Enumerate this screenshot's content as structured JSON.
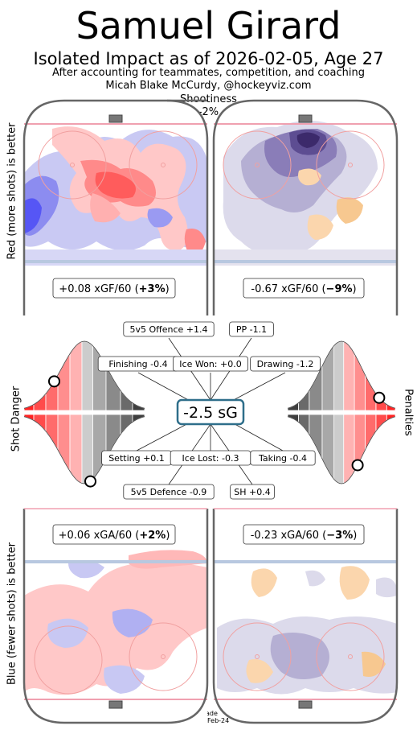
{
  "header": {
    "title": "Samuel Girard",
    "subtitle": "Isolated Impact as of 2026-02-05, Age 27",
    "line1": "After accounting for teammates, competition, and coaching",
    "line2": "Micah Blake McCurdy, @hockeyviz.com",
    "shootiness_label": "Shootiness",
    "shootiness_value": "-2%"
  },
  "axis_labels": {
    "top": "Red (more shots) is better",
    "bottom": "Blue (fewer shots) is better",
    "left": "Shot Danger",
    "right": "Penalties"
  },
  "footer": {
    "made_label": "Made",
    "made_date": "2026-Feb-24"
  },
  "center": {
    "total": "-2.5 sG"
  },
  "chart_data": {
    "type": "heatmap",
    "panels": [
      {
        "name": "offence-shot-danger",
        "xgf60": "+0.08 xGF/60 (",
        "pct": "+3%",
        "close": ")"
      },
      {
        "name": "offence-shootiness",
        "xgf60": "-0.67 xGF/60 (",
        "pct": "−9%",
        "close": ")"
      },
      {
        "name": "defence-shot-danger",
        "xga60": "+0.06 xGA/60 (",
        "pct": "+2%",
        "close": ")"
      },
      {
        "name": "defence-shootiness",
        "xga60": "-0.23 xGA/60 (",
        "pct": "−3%",
        "close": ")"
      }
    ],
    "components": [
      {
        "label": "5v5 Offence +1.4",
        "value": 1.4
      },
      {
        "label": "PP -1.1",
        "value": -1.1
      },
      {
        "label": "Finishing -0.4",
        "value": -0.4
      },
      {
        "label": "Ice Won: +0.0",
        "value": 0.0
      },
      {
        "label": "Drawing -1.2",
        "value": -1.2
      },
      {
        "label": "Setting +0.1",
        "value": 0.1
      },
      {
        "label": "Ice Lost: -0.3",
        "value": -0.3
      },
      {
        "label": "Taking -0.4",
        "value": -0.4
      },
      {
        "label": "5v5 Defence -0.9",
        "value": -0.9
      },
      {
        "label": "SH +0.4",
        "value": 0.4
      }
    ],
    "distributions": {
      "finishing_percentile": 0.25,
      "setting_percentile": 0.55,
      "drawing_percentile": 0.15,
      "taking_percentile": 0.35
    }
  }
}
